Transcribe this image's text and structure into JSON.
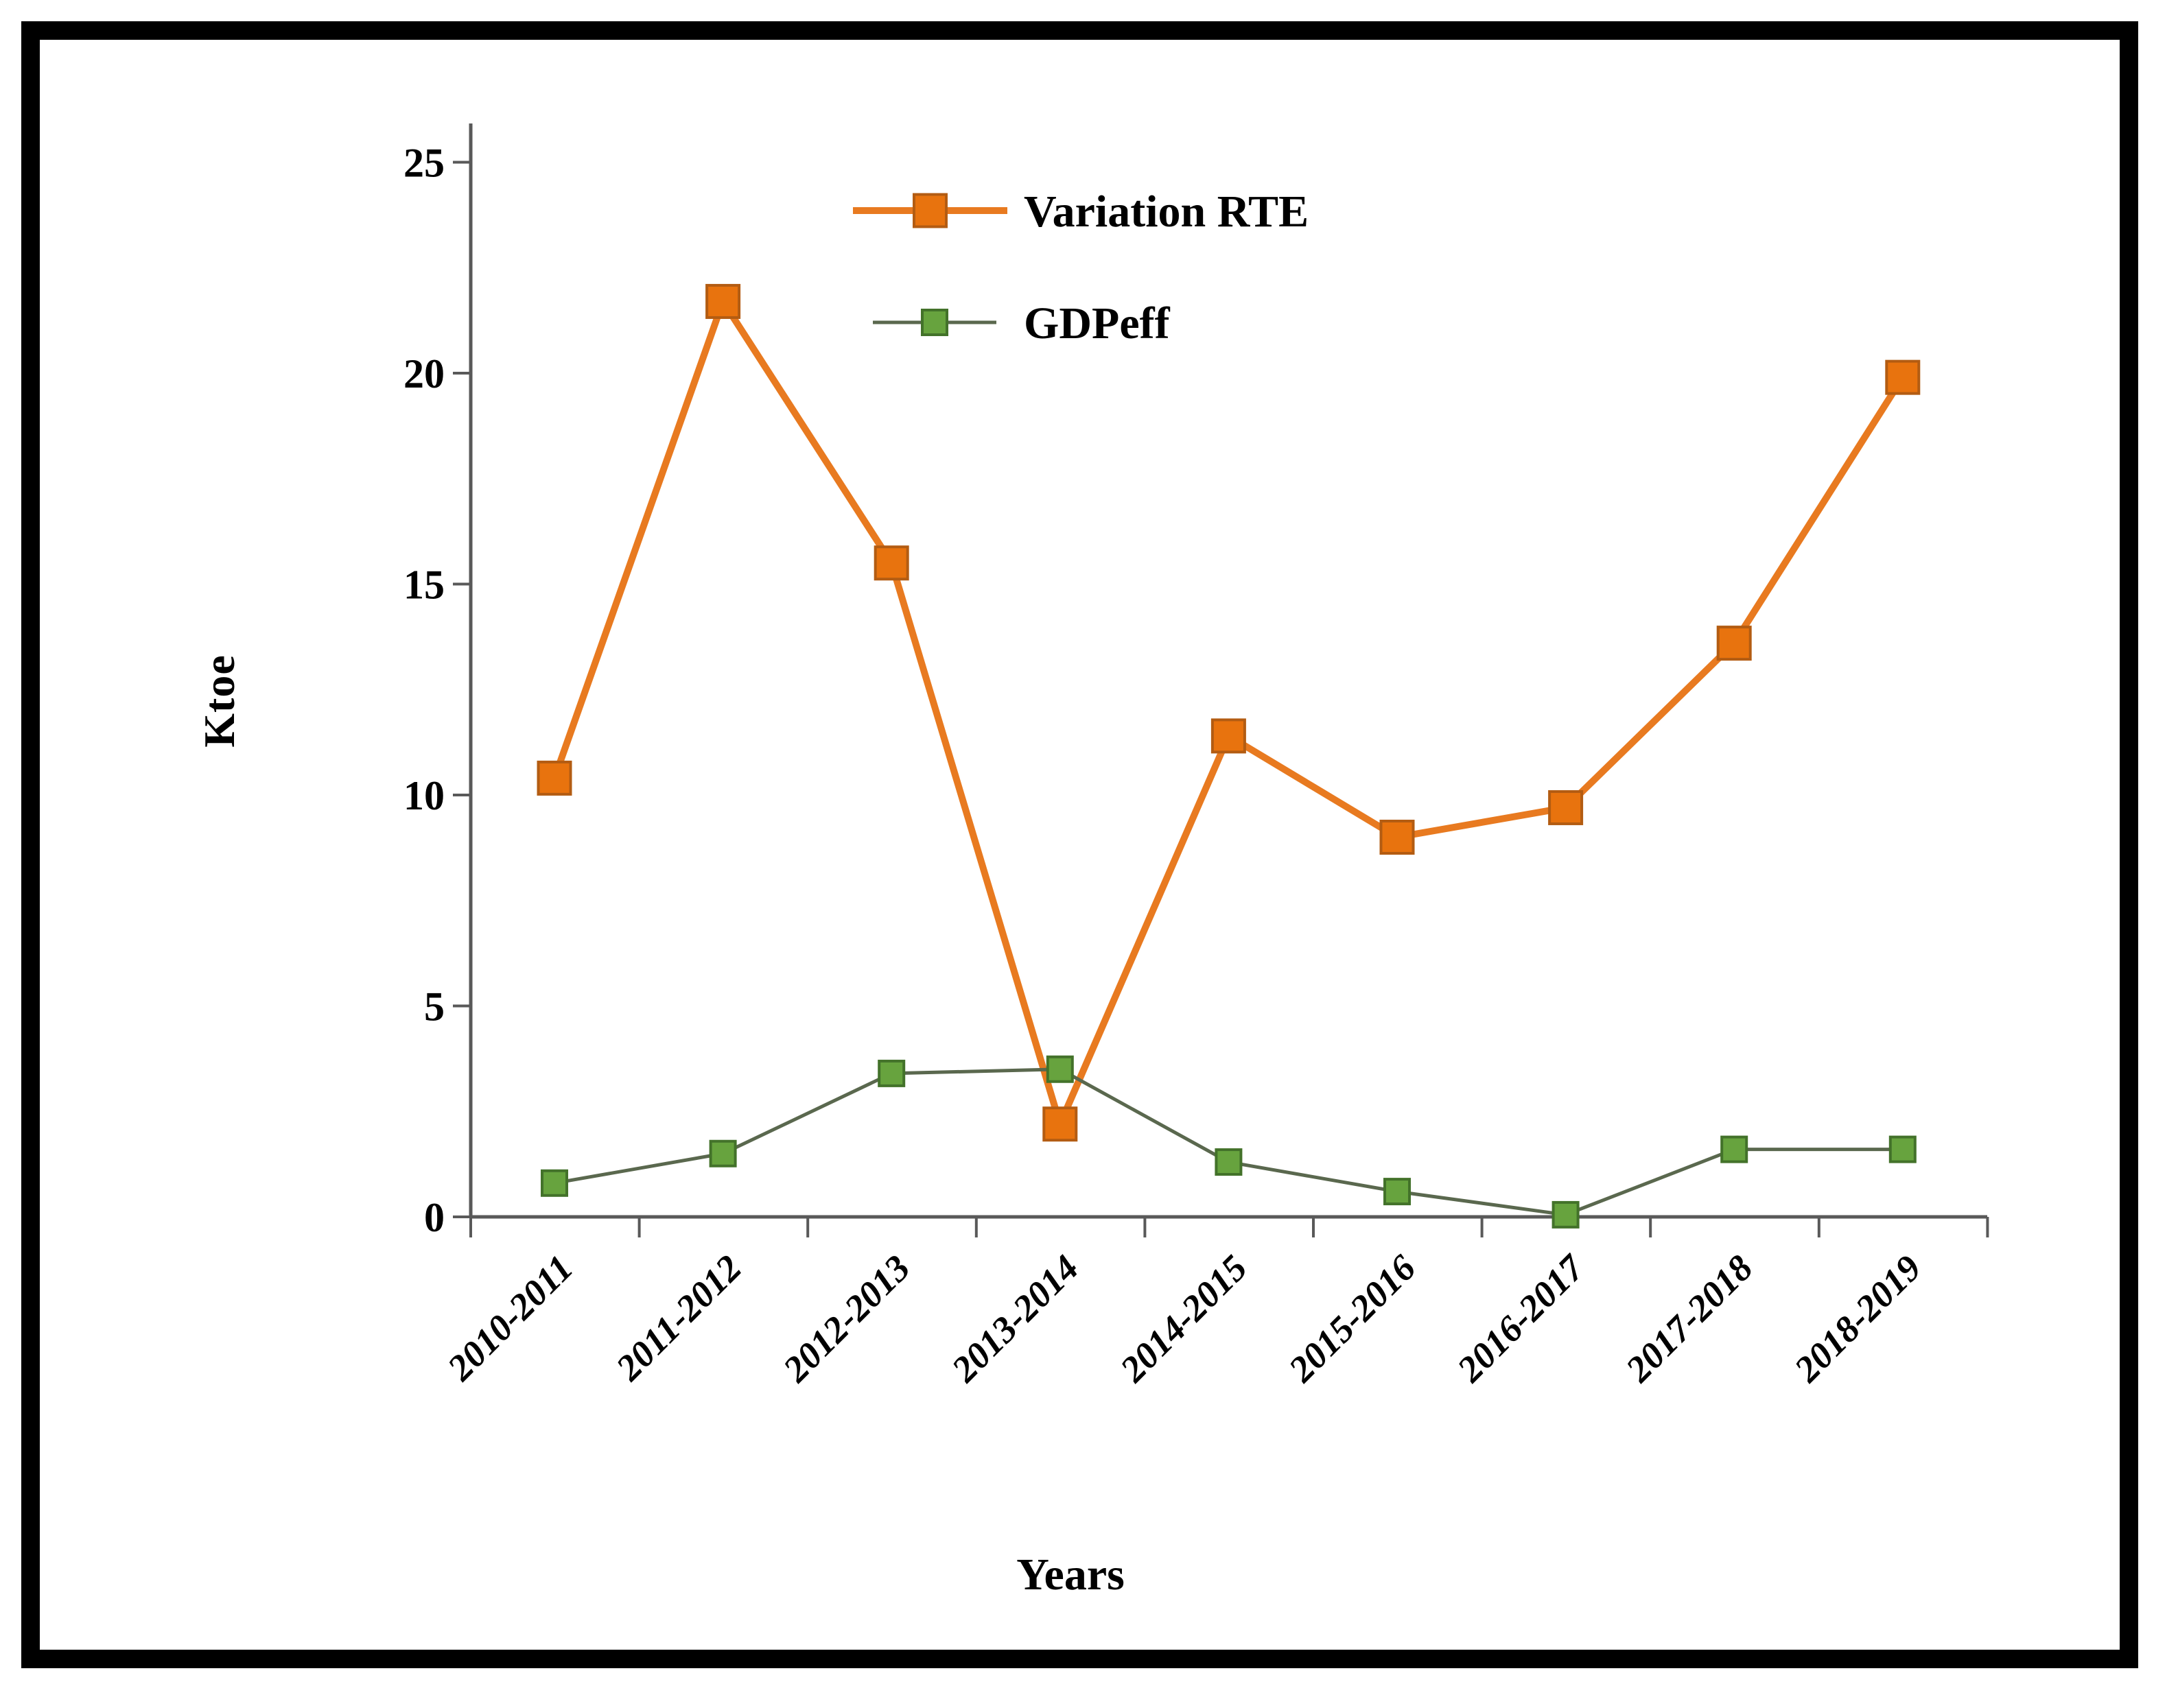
{
  "frame": {
    "border_color": "#000000",
    "background": "#ffffff"
  },
  "chart_data": {
    "type": "line",
    "title": "",
    "xlabel": "Years",
    "ylabel": "Ktoe",
    "categories": [
      "2010-2011",
      "2011-2012",
      "2012-2013",
      "2013-2014",
      "2014-2015",
      "2015-2016",
      "2016-2017",
      "2017-2018",
      "2018-2019"
    ],
    "series": [
      {
        "name": "Variation RTE",
        "values": [
          10.4,
          21.7,
          15.5,
          2.2,
          11.4,
          9.0,
          9.7,
          13.6,
          19.9
        ],
        "line_color": "#e87a20",
        "marker_fill": "#e8730e",
        "marker_border": "#b35c12",
        "line_width": 10,
        "marker_size": 47
      },
      {
        "name": "GDPeff",
        "values": [
          0.8,
          1.5,
          3.4,
          3.5,
          1.3,
          0.6,
          0.05,
          1.6,
          1.6
        ],
        "line_color": "#5a684e",
        "marker_fill": "#67a33e",
        "marker_border": "#43722a",
        "line_width": 5,
        "marker_size": 36
      }
    ],
    "ylim": [
      0,
      25
    ],
    "y_tick_labels": [
      "0",
      "5",
      "10",
      "15",
      "20",
      "25"
    ],
    "grid": false,
    "legend_position": "top-center-inside",
    "axis_color": "#595959",
    "text_color": "#000000"
  }
}
